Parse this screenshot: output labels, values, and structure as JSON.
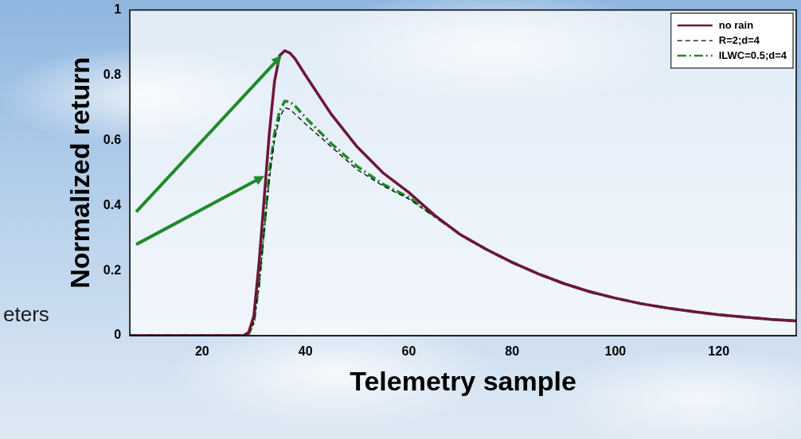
{
  "chart_data": {
    "type": "line",
    "x_label": "Telemetry sample",
    "y_label": "Normalized return",
    "x": [
      6,
      10,
      15,
      20,
      25,
      28,
      29,
      30,
      31,
      32,
      33,
      34,
      35,
      36,
      37,
      38,
      40,
      45,
      50,
      55,
      60,
      65,
      70,
      75,
      80,
      85,
      90,
      95,
      100,
      105,
      110,
      115,
      120,
      125,
      130,
      135
    ],
    "series": [
      {
        "name": "no rain",
        "color": "#6e1638",
        "line_style": "solid",
        "values": [
          0,
          0,
          0,
          0,
          0,
          0,
          0.01,
          0.06,
          0.22,
          0.42,
          0.62,
          0.78,
          0.86,
          0.875,
          0.868,
          0.85,
          0.8,
          0.68,
          0.58,
          0.5,
          0.44,
          0.37,
          0.31,
          0.265,
          0.225,
          0.19,
          0.16,
          0.135,
          0.115,
          0.098,
          0.085,
          0.074,
          0.064,
          0.057,
          0.05,
          0.045
        ]
      },
      {
        "name": "R=2;d=4",
        "color": "#000000",
        "line_style": "dashed",
        "values": [
          0,
          0,
          0,
          0,
          0,
          0,
          0.005,
          0.04,
          0.15,
          0.32,
          0.48,
          0.6,
          0.67,
          0.7,
          0.695,
          0.68,
          0.65,
          0.58,
          0.51,
          0.46,
          0.42,
          0.365,
          0.31,
          0.265,
          0.225,
          0.19,
          0.16,
          0.135,
          0.115,
          0.098,
          0.085,
          0.074,
          0.064,
          0.057,
          0.05,
          0.045
        ]
      },
      {
        "name": "ILWC=0.5;d=4",
        "color": "#1f8a2a",
        "line_style": "dashdot",
        "values": [
          0,
          0,
          0,
          0,
          0,
          0,
          0.005,
          0.04,
          0.16,
          0.33,
          0.5,
          0.62,
          0.69,
          0.72,
          0.718,
          0.705,
          0.67,
          0.59,
          0.52,
          0.465,
          0.425,
          0.367,
          0.31,
          0.265,
          0.225,
          0.19,
          0.16,
          0.135,
          0.115,
          0.098,
          0.085,
          0.074,
          0.064,
          0.057,
          0.05,
          0.045
        ]
      }
    ],
    "xlim": [
      6,
      135
    ],
    "xticks": [
      20,
      40,
      60,
      80,
      100,
      120
    ],
    "ylim": [
      0,
      1
    ],
    "yticks": [
      0,
      0.2,
      0.4,
      0.6,
      0.8,
      1
    ],
    "grid": false,
    "legend": "upper right",
    "annotations": [
      {
        "text": "eters"
      }
    ]
  }
}
